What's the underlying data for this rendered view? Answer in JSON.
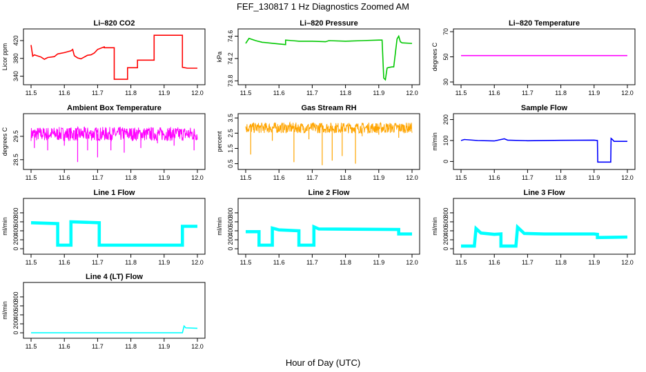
{
  "figure": {
    "title": "FEF_130817  1 Hz Diagnostics Zoomed AM",
    "xlabel": "Hour of Day (UTC)"
  },
  "chart_data": [
    {
      "type": "line",
      "title": "Li–820 CO2",
      "ylabel": "Licor ppm",
      "color": "#ff0000",
      "xlim": [
        11.5,
        12.0
      ],
      "xticks": [
        "11.5",
        "11.6",
        "11.7",
        "11.8",
        "11.9",
        "12.0"
      ],
      "ylim": [
        327,
        440
      ],
      "yticks": [
        340,
        380,
        420
      ],
      "series": [
        {
          "x": [
            11.5,
            11.505,
            11.51,
            11.53,
            11.54,
            11.55,
            11.57,
            11.58,
            11.6,
            11.62,
            11.625,
            11.63,
            11.64,
            11.65,
            11.66,
            11.665,
            11.67,
            11.68,
            11.69,
            11.7,
            11.72,
            11.72,
            11.75,
            11.75,
            11.79,
            11.79,
            11.82,
            11.82,
            11.87,
            11.87,
            11.92,
            11.955,
            11.955,
            11.97,
            12.0
          ],
          "y": [
            410,
            385,
            388,
            383,
            378,
            382,
            384,
            390,
            393,
            397,
            400,
            386,
            381,
            379,
            383,
            385,
            387,
            388,
            392,
            400,
            406,
            404,
            404,
            333,
            333,
            359,
            359,
            376,
            376,
            432,
            432,
            432,
            360,
            358,
            358
          ]
        }
      ]
    },
    {
      "type": "line",
      "title": "Li–820 Pressure",
      "ylabel": "kPa",
      "color": "#00c800",
      "xlim": [
        11.5,
        12.0
      ],
      "xticks": [
        "11.5",
        "11.6",
        "11.7",
        "11.8",
        "11.9",
        "12.0"
      ],
      "ylim": [
        73.78,
        74.68
      ],
      "yticks": [
        73.8,
        74.2,
        74.6
      ],
      "series": [
        {
          "x": [
            11.5,
            11.51,
            11.53,
            11.55,
            11.6,
            11.62,
            11.62,
            11.64,
            11.66,
            11.7,
            11.74,
            11.75,
            11.8,
            11.85,
            11.9,
            11.91,
            11.915,
            11.92,
            11.925,
            11.93,
            11.94,
            11.945,
            11.95,
            11.955,
            11.96,
            11.965,
            11.97,
            12.0
          ],
          "y": [
            74.47,
            74.56,
            74.52,
            74.49,
            74.46,
            74.45,
            74.53,
            74.52,
            74.51,
            74.51,
            74.5,
            74.52,
            74.51,
            74.52,
            74.53,
            74.53,
            73.85,
            73.82,
            74.03,
            74.04,
            74.05,
            74.05,
            74.3,
            74.55,
            74.6,
            74.5,
            74.48,
            74.47
          ]
        }
      ]
    },
    {
      "type": "line",
      "title": "Li–820 Temperature",
      "ylabel": "degrees C",
      "color": "#ff00ff",
      "xlim": [
        11.5,
        12.0
      ],
      "xticks": [
        "11.5",
        "11.6",
        "11.7",
        "11.8",
        "11.9",
        "12.0"
      ],
      "ylim": [
        30,
        70
      ],
      "yticks": [
        30,
        50,
        70
      ],
      "series": [
        {
          "x": [
            11.5,
            12.0
          ],
          "y": [
            51,
            51
          ]
        }
      ]
    },
    {
      "type": "line",
      "title": "Ambient Box Temperature",
      "ylabel": "degrees C",
      "color": "#ff00ff",
      "xlim": [
        11.5,
        12.0
      ],
      "xticks": [
        "11.5",
        "11.6",
        "11.7",
        "11.8",
        "11.9",
        "12.0"
      ],
      "ylim": [
        28.2,
        30.35
      ],
      "yticks": [
        28.5,
        29.5
      ],
      "noise": {
        "base": 29.6,
        "amp": 0.3,
        "dips": [
          [
            11.51,
            29.0
          ],
          [
            11.55,
            28.9
          ],
          [
            11.6,
            29.1
          ],
          [
            11.64,
            28.4
          ],
          [
            11.67,
            28.9
          ],
          [
            11.7,
            28.6
          ],
          [
            11.74,
            28.9
          ],
          [
            11.78,
            28.8
          ],
          [
            11.83,
            29.0
          ],
          [
            11.88,
            29.2
          ],
          [
            11.93,
            29.1
          ],
          [
            11.99,
            28.9
          ]
        ]
      }
    },
    {
      "type": "line",
      "title": "Gas Stream RH",
      "ylabel": "percent",
      "color": "#ffa500",
      "xlim": [
        11.5,
        12.0
      ],
      "xticks": [
        "11.5",
        "11.6",
        "11.7",
        "11.8",
        "11.9",
        "12.0"
      ],
      "ylim": [
        0.3,
        3.6
      ],
      "yticks": [
        0.5,
        1.5,
        2.5,
        3.5
      ],
      "noise": {
        "base": 2.85,
        "amp": 0.35,
        "dips": [
          [
            11.515,
            1.1
          ],
          [
            11.58,
            2.0
          ],
          [
            11.645,
            0.6
          ],
          [
            11.69,
            2.1
          ],
          [
            11.73,
            0.4
          ],
          [
            11.76,
            0.7
          ],
          [
            11.79,
            1.0
          ],
          [
            11.83,
            0.5
          ],
          [
            11.85,
            2.3
          ],
          [
            11.9,
            2.4
          ],
          [
            11.96,
            2.2
          ]
        ]
      }
    },
    {
      "type": "line",
      "title": "Sample Flow",
      "ylabel": "ml/min",
      "color": "#0000ff",
      "xlim": [
        11.5,
        12.0
      ],
      "xticks": [
        "11.5",
        "11.6",
        "11.7",
        "11.8",
        "11.9",
        "12.0"
      ],
      "ylim": [
        -25,
        215
      ],
      "yticks": [
        0,
        100,
        200
      ],
      "series": [
        {
          "x": [
            11.5,
            11.51,
            11.55,
            11.6,
            11.63,
            11.64,
            11.7,
            11.8,
            11.9,
            11.91,
            11.911,
            11.95,
            11.951,
            11.955,
            11.96,
            12.0
          ],
          "y": [
            100,
            105,
            100,
            98,
            108,
            102,
            99,
            101,
            102,
            100,
            -3,
            -3,
            110,
            105,
            96,
            96
          ]
        }
      ]
    },
    {
      "type": "line",
      "title": "Line 1 Flow",
      "ylabel": "ml/min",
      "color": "#00ffff",
      "xlim": [
        11.5,
        12.0
      ],
      "xticks": [
        "11.5",
        "11.6",
        "11.7",
        "11.8",
        "11.9",
        "12.0"
      ],
      "ylim": [
        -60,
        1060
      ],
      "yticks": [
        0,
        200,
        400,
        600,
        800
      ],
      "band": 70,
      "series": [
        {
          "x": [
            11.5,
            11.58,
            11.58,
            11.62,
            11.62,
            11.705,
            11.705,
            11.955,
            11.955,
            12.0
          ],
          "y": [
            580,
            560,
            80,
            80,
            600,
            580,
            80,
            80,
            500,
            500
          ]
        }
      ]
    },
    {
      "type": "line",
      "title": "Line 2 Flow",
      "ylabel": "ml/min",
      "color": "#00ffff",
      "xlim": [
        11.5,
        12.0
      ],
      "xticks": [
        "11.5",
        "11.6",
        "11.7",
        "11.8",
        "11.9",
        "12.0"
      ],
      "ylim": [
        -60,
        1060
      ],
      "yticks": [
        0,
        200,
        400,
        600,
        800
      ],
      "band": 70,
      "series": [
        {
          "x": [
            11.5,
            11.54,
            11.54,
            11.58,
            11.58,
            11.6,
            11.66,
            11.66,
            11.705,
            11.705,
            11.72,
            11.96,
            11.96,
            12.0
          ],
          "y": [
            380,
            380,
            80,
            80,
            460,
            420,
            400,
            80,
            80,
            490,
            440,
            430,
            330,
            330
          ]
        }
      ]
    },
    {
      "type": "line",
      "title": "Line 3 Flow",
      "ylabel": "ml/min",
      "color": "#00ffff",
      "xlim": [
        11.5,
        12.0
      ],
      "xticks": [
        "11.5",
        "11.6",
        "11.7",
        "11.8",
        "11.9",
        "12.0"
      ],
      "ylim": [
        -60,
        1060
      ],
      "yticks": [
        0,
        200,
        400,
        600,
        800
      ],
      "band": 70,
      "series": [
        {
          "x": [
            11.5,
            11.54,
            11.545,
            11.56,
            11.6,
            11.62,
            11.62,
            11.665,
            11.67,
            11.69,
            11.75,
            11.9,
            11.91,
            11.91,
            12.0
          ],
          "y": [
            60,
            60,
            450,
            350,
            320,
            330,
            60,
            60,
            480,
            340,
            330,
            330,
            320,
            250,
            260
          ]
        }
      ]
    },
    {
      "type": "line",
      "title": "Line 4 (LT) Flow",
      "ylabel": "ml/min",
      "color": "#00ffff",
      "xlim": [
        11.5,
        12.0
      ],
      "xticks": [
        "11.5",
        "11.6",
        "11.7",
        "11.8",
        "11.9",
        "12.0"
      ],
      "ylim": [
        -60,
        1060
      ],
      "yticks": [
        0,
        200,
        400,
        600,
        800
      ],
      "series": [
        {
          "x": [
            11.5,
            11.955,
            11.96,
            11.965,
            12.0
          ],
          "y": [
            0,
            0,
            150,
            110,
            100
          ]
        }
      ]
    }
  ]
}
